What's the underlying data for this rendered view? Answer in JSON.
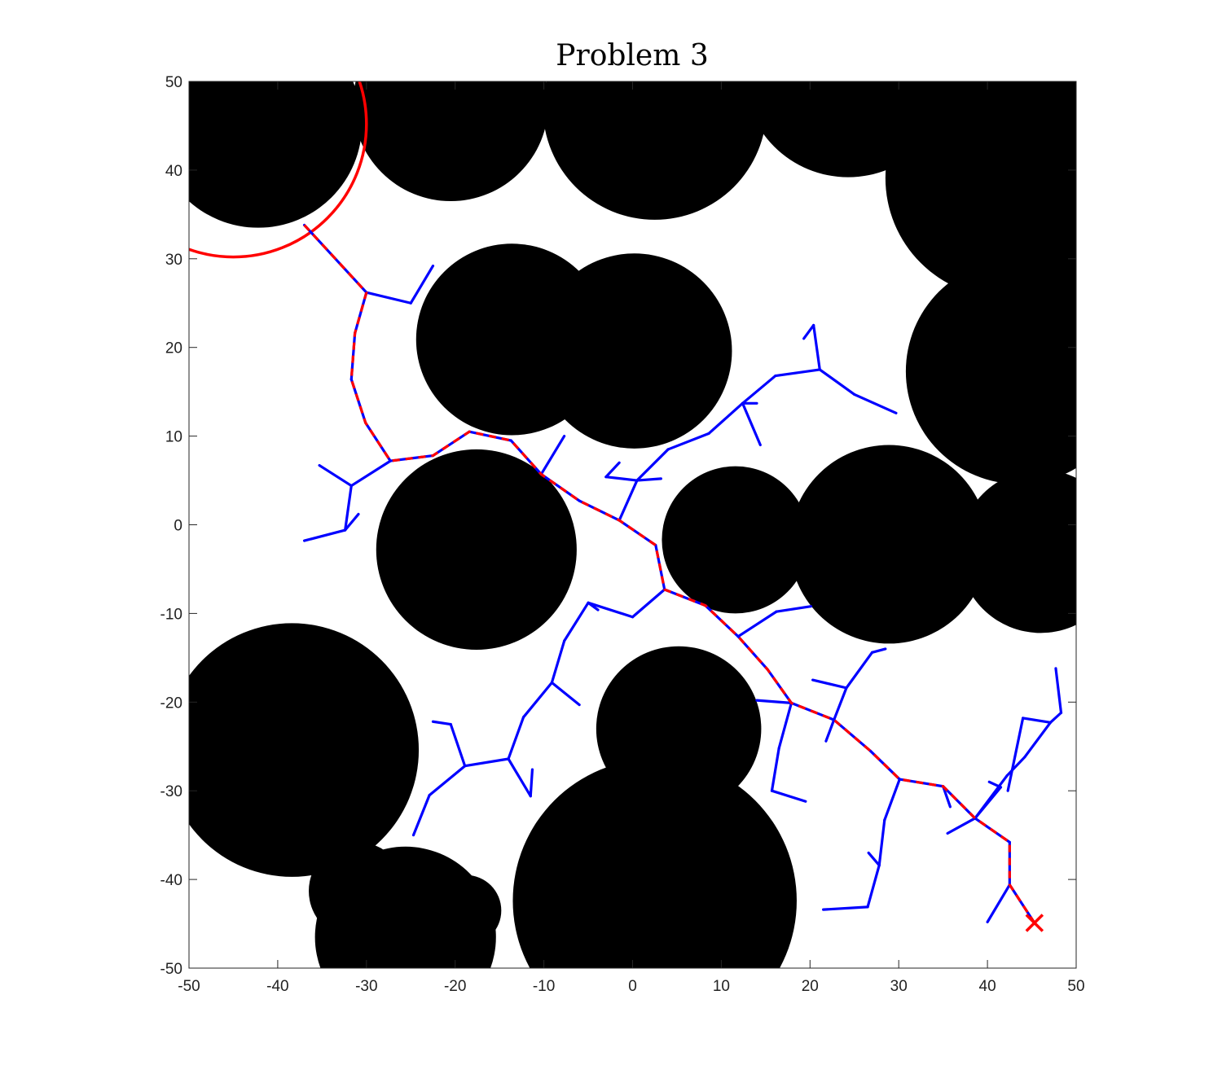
{
  "chart_data": {
    "type": "scatter",
    "title": "Problem 3",
    "xlabel": "",
    "ylabel": "",
    "xlim": [
      -50,
      50
    ],
    "ylim": [
      -50,
      50
    ],
    "xticks": [
      -50,
      -40,
      -30,
      -20,
      -10,
      0,
      10,
      20,
      30,
      40,
      50
    ],
    "yticks": [
      -50,
      -40,
      -30,
      -20,
      -10,
      0,
      10,
      20,
      30,
      40,
      50
    ],
    "grid": false,
    "legend": "none",
    "colors": {
      "obstacle": "#000000",
      "tree": "#0000ff",
      "path": "#ff0000",
      "goal_region": "#ff0000",
      "start_marker": "#ff0000"
    },
    "obstacles": [
      {
        "cx": -42.2,
        "cy": 45.2,
        "r": 11.7
      },
      {
        "cx": -20.5,
        "cy": 47.5,
        "r": 11.0
      },
      {
        "cx": 2.5,
        "cy": 47.0,
        "r": 12.6
      },
      {
        "cx": 24.3,
        "cy": 51.0,
        "r": 11.8
      },
      {
        "cx": 30.5,
        "cy": 54.0,
        "r": 10.0
      },
      {
        "cx": 42.0,
        "cy": 39.1,
        "r": 13.5
      },
      {
        "cx": -13.6,
        "cy": 20.9,
        "r": 10.8
      },
      {
        "cx": 0.2,
        "cy": 19.6,
        "r": 11.0
      },
      {
        "cx": 43.5,
        "cy": 17.3,
        "r": 12.7
      },
      {
        "cx": -17.6,
        "cy": -2.8,
        "r": 11.3
      },
      {
        "cx": 11.6,
        "cy": -1.7,
        "r": 8.3
      },
      {
        "cx": 28.9,
        "cy": -2.2,
        "r": 11.2
      },
      {
        "cx": 46.0,
        "cy": -3.0,
        "r": 9.2
      },
      {
        "cx": -38.4,
        "cy": -25.4,
        "r": 14.3
      },
      {
        "cx": 5.2,
        "cy": -23.0,
        "r": 9.3
      },
      {
        "cx": 2.5,
        "cy": -42.4,
        "r": 16.0
      },
      {
        "cx": -25.6,
        "cy": -46.5,
        "r": 10.2
      },
      {
        "cx": -31.0,
        "cy": -41.3,
        "r": 5.5
      },
      {
        "cx": -18.8,
        "cy": -43.5,
        "r": 4.0
      }
    ],
    "goal_region": {
      "cx": -45.0,
      "cy": 45.2,
      "r": 15.0
    },
    "start": {
      "x": 45.3,
      "y": -44.9
    },
    "tree_segments": [
      [
        [
          -37.0,
          33.8
        ],
        [
          -30.0,
          26.2
        ]
      ],
      [
        [
          -30.0,
          26.2
        ],
        [
          -25.0,
          25.0
        ]
      ],
      [
        [
          -25.0,
          25.0
        ],
        [
          -22.5,
          29.2
        ]
      ],
      [
        [
          -30.0,
          26.2
        ],
        [
          -31.3,
          21.6
        ]
      ],
      [
        [
          -31.3,
          21.6
        ],
        [
          -31.7,
          16.4
        ]
      ],
      [
        [
          -31.7,
          16.4
        ],
        [
          -30.1,
          11.5
        ]
      ],
      [
        [
          -30.1,
          11.5
        ],
        [
          -27.3,
          7.2
        ]
      ],
      [
        [
          -27.3,
          7.2
        ],
        [
          -22.5,
          7.8
        ]
      ],
      [
        [
          -22.5,
          7.8
        ],
        [
          -18.4,
          10.5
        ]
      ],
      [
        [
          -18.4,
          10.5
        ],
        [
          -13.7,
          9.5
        ]
      ],
      [
        [
          -13.7,
          9.5
        ],
        [
          -10.3,
          5.7
        ]
      ],
      [
        [
          -10.3,
          5.7
        ],
        [
          -6.0,
          2.7
        ]
      ],
      [
        [
          -6.0,
          2.7
        ],
        [
          -1.5,
          0.5
        ]
      ],
      [
        [
          -1.5,
          0.5
        ],
        [
          2.6,
          -2.3
        ]
      ],
      [
        [
          2.6,
          -2.3
        ],
        [
          3.6,
          -7.3
        ]
      ],
      [
        [
          3.6,
          -7.3
        ],
        [
          8.2,
          -9.1
        ]
      ],
      [
        [
          8.2,
          -9.1
        ],
        [
          11.9,
          -12.6
        ]
      ],
      [
        [
          11.9,
          -12.6
        ],
        [
          15.2,
          -16.3
        ]
      ],
      [
        [
          15.2,
          -16.3
        ],
        [
          17.9,
          -20.1
        ]
      ],
      [
        [
          17.9,
          -20.1
        ],
        [
          22.7,
          -22.0
        ]
      ],
      [
        [
          22.7,
          -22.0
        ],
        [
          26.8,
          -25.5
        ]
      ],
      [
        [
          26.8,
          -25.5
        ],
        [
          30.1,
          -28.7
        ]
      ],
      [
        [
          30.1,
          -28.7
        ],
        [
          35.0,
          -29.5
        ]
      ],
      [
        [
          35.0,
          -29.5
        ],
        [
          38.6,
          -33.1
        ]
      ],
      [
        [
          38.6,
          -33.1
        ],
        [
          42.5,
          -35.8
        ]
      ],
      [
        [
          42.5,
          -35.8
        ],
        [
          42.5,
          -40.6
        ]
      ],
      [
        [
          42.5,
          -40.6
        ],
        [
          45.3,
          -44.9
        ]
      ],
      [
        [
          -27.3,
          7.2
        ],
        [
          -31.7,
          4.4
        ]
      ],
      [
        [
          -31.7,
          4.4
        ],
        [
          -35.3,
          6.7
        ]
      ],
      [
        [
          -31.7,
          4.4
        ],
        [
          -32.4,
          -0.6
        ]
      ],
      [
        [
          -32.4,
          -0.6
        ],
        [
          -37.0,
          -1.8
        ]
      ],
      [
        [
          -32.4,
          -0.6
        ],
        [
          -30.9,
          1.2
        ]
      ],
      [
        [
          -10.3,
          5.7
        ],
        [
          -7.7,
          10.0
        ]
      ],
      [
        [
          -1.5,
          0.5
        ],
        [
          0.5,
          5.0
        ]
      ],
      [
        [
          0.5,
          5.0
        ],
        [
          -3.0,
          5.4
        ]
      ],
      [
        [
          -3.0,
          5.4
        ],
        [
          -1.5,
          7.0
        ]
      ],
      [
        [
          0.5,
          5.0
        ],
        [
          3.2,
          5.2
        ]
      ],
      [
        [
          0.5,
          5.0
        ],
        [
          4.0,
          8.5
        ]
      ],
      [
        [
          4.0,
          8.5
        ],
        [
          8.6,
          10.3
        ]
      ],
      [
        [
          8.6,
          10.3
        ],
        [
          12.4,
          13.7
        ]
      ],
      [
        [
          12.4,
          13.7
        ],
        [
          14.0,
          13.7
        ]
      ],
      [
        [
          12.4,
          13.7
        ],
        [
          14.4,
          9.0
        ]
      ],
      [
        [
          12.4,
          13.7
        ],
        [
          16.1,
          16.8
        ]
      ],
      [
        [
          16.1,
          16.8
        ],
        [
          21.1,
          17.5
        ]
      ],
      [
        [
          21.1,
          17.5
        ],
        [
          20.4,
          22.5
        ]
      ],
      [
        [
          20.4,
          22.5
        ],
        [
          19.3,
          21.0
        ]
      ],
      [
        [
          21.1,
          17.5
        ],
        [
          25.0,
          14.7
        ]
      ],
      [
        [
          25.0,
          14.7
        ],
        [
          29.7,
          12.6
        ]
      ],
      [
        [
          11.9,
          -12.6
        ],
        [
          16.2,
          -9.8
        ]
      ],
      [
        [
          16.2,
          -9.8
        ],
        [
          20.1,
          -9.2
        ]
      ],
      [
        [
          3.6,
          -7.3
        ],
        [
          0.0,
          -10.4
        ]
      ],
      [
        [
          0.0,
          -10.4
        ],
        [
          -5.0,
          -8.8
        ]
      ],
      [
        [
          -5.0,
          -8.8
        ],
        [
          -3.9,
          -9.6
        ]
      ],
      [
        [
          -5.0,
          -8.8
        ],
        [
          -7.7,
          -13.1
        ]
      ],
      [
        [
          -7.7,
          -13.1
        ],
        [
          -9.1,
          -17.8
        ]
      ],
      [
        [
          -9.1,
          -17.8
        ],
        [
          -6.0,
          -20.3
        ]
      ],
      [
        [
          -9.1,
          -17.8
        ],
        [
          -12.3,
          -21.7
        ]
      ],
      [
        [
          -12.3,
          -21.7
        ],
        [
          -14.0,
          -26.4
        ]
      ],
      [
        [
          -14.0,
          -26.4
        ],
        [
          -18.9,
          -27.2
        ]
      ],
      [
        [
          -18.9,
          -27.2
        ],
        [
          -20.5,
          -22.5
        ]
      ],
      [
        [
          -20.5,
          -22.5
        ],
        [
          -22.5,
          -22.2
        ]
      ],
      [
        [
          -18.9,
          -27.2
        ],
        [
          -22.9,
          -30.5
        ]
      ],
      [
        [
          -22.9,
          -30.5
        ],
        [
          -24.7,
          -35.0
        ]
      ],
      [
        [
          -14.0,
          -26.4
        ],
        [
          -11.5,
          -30.6
        ]
      ],
      [
        [
          -11.5,
          -30.6
        ],
        [
          -11.3,
          -27.6
        ]
      ],
      [
        [
          17.9,
          -20.1
        ],
        [
          16.5,
          -25.2
        ]
      ],
      [
        [
          16.5,
          -25.2
        ],
        [
          15.7,
          -30.0
        ]
      ],
      [
        [
          15.7,
          -30.0
        ],
        [
          19.5,
          -31.2
        ]
      ],
      [
        [
          17.9,
          -20.1
        ],
        [
          14.0,
          -19.8
        ]
      ],
      [
        [
          22.7,
          -22.0
        ],
        [
          21.8,
          -24.4
        ]
      ],
      [
        [
          22.7,
          -22.0
        ],
        [
          24.1,
          -18.4
        ]
      ],
      [
        [
          24.1,
          -18.4
        ],
        [
          27.0,
          -14.4
        ]
      ],
      [
        [
          27.0,
          -14.4
        ],
        [
          28.5,
          -14.0
        ]
      ],
      [
        [
          24.1,
          -18.4
        ],
        [
          20.3,
          -17.5
        ]
      ],
      [
        [
          30.1,
          -28.7
        ],
        [
          28.4,
          -33.3
        ]
      ],
      [
        [
          28.4,
          -33.3
        ],
        [
          27.8,
          -38.4
        ]
      ],
      [
        [
          27.8,
          -38.4
        ],
        [
          26.6,
          -37.0
        ]
      ],
      [
        [
          27.8,
          -38.4
        ],
        [
          26.5,
          -43.1
        ]
      ],
      [
        [
          26.5,
          -43.1
        ],
        [
          21.5,
          -43.4
        ]
      ],
      [
        [
          35.0,
          -29.5
        ],
        [
          35.8,
          -31.8
        ]
      ],
      [
        [
          38.6,
          -33.1
        ],
        [
          35.5,
          -34.8
        ]
      ],
      [
        [
          38.6,
          -33.1
        ],
        [
          41.5,
          -29.6
        ]
      ],
      [
        [
          41.5,
          -29.6
        ],
        [
          40.2,
          -29.0
        ]
      ],
      [
        [
          38.6,
          -33.1
        ],
        [
          42.2,
          -28.3
        ]
      ],
      [
        [
          42.2,
          -28.3
        ],
        [
          44.2,
          -26.2
        ]
      ],
      [
        [
          44.2,
          -26.2
        ],
        [
          47.1,
          -22.3
        ]
      ],
      [
        [
          47.1,
          -22.3
        ],
        [
          48.3,
          -21.2
        ]
      ],
      [
        [
          48.3,
          -21.2
        ],
        [
          47.7,
          -16.2
        ]
      ],
      [
        [
          47.1,
          -22.3
        ],
        [
          44.0,
          -21.8
        ]
      ],
      [
        [
          44.0,
          -21.8
        ],
        [
          42.3,
          -30.0
        ]
      ],
      [
        [
          42.5,
          -40.6
        ],
        [
          40.0,
          -44.8
        ]
      ]
    ],
    "path": [
      [
        -37.0,
        33.8
      ],
      [
        -30.0,
        26.2
      ],
      [
        -31.3,
        21.6
      ],
      [
        -31.7,
        16.4
      ],
      [
        -30.1,
        11.5
      ],
      [
        -27.3,
        7.2
      ],
      [
        -22.5,
        7.8
      ],
      [
        -18.4,
        10.5
      ],
      [
        -13.7,
        9.5
      ],
      [
        -10.3,
        5.7
      ],
      [
        -6.0,
        2.7
      ],
      [
        -1.5,
        0.5
      ],
      [
        2.6,
        -2.3
      ],
      [
        3.6,
        -7.3
      ],
      [
        8.2,
        -9.1
      ],
      [
        11.9,
        -12.6
      ],
      [
        15.2,
        -16.3
      ],
      [
        17.9,
        -20.1
      ],
      [
        22.7,
        -22.0
      ],
      [
        26.8,
        -25.5
      ],
      [
        30.1,
        -28.7
      ],
      [
        35.0,
        -29.5
      ],
      [
        38.6,
        -33.1
      ],
      [
        42.5,
        -35.8
      ],
      [
        42.5,
        -40.6
      ],
      [
        45.3,
        -44.9
      ]
    ]
  }
}
